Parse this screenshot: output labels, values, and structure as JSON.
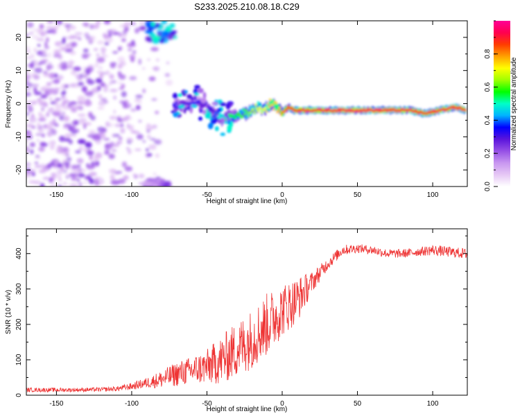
{
  "title": "S233.2025.210.08.18.C29",
  "chart_data": [
    {
      "type": "heatmap",
      "xlabel": "Height of straight line (km)",
      "ylabel": "Frequency (Hz)",
      "xlim": [
        -170,
        123
      ],
      "ylim": [
        -25,
        25
      ],
      "xticks": [
        -150,
        -100,
        -50,
        0,
        50,
        100
      ],
      "yticks": [
        -20,
        -10,
        0,
        10,
        20
      ],
      "colorbar": {
        "label": "Normalized spectral amplitude",
        "range": [
          0,
          1
        ],
        "ticks": [
          0.0,
          0.2,
          0.4,
          0.6,
          0.8
        ],
        "colors": [
          "#ffffff",
          "#e6c8f5",
          "#c896f0",
          "#9650e6",
          "#5a14dc",
          "#0000ff",
          "#00b4ff",
          "#00ffc8",
          "#00ff00",
          "#a0ff00",
          "#ffff00",
          "#ffa000",
          "#ff3c00",
          "#ff0050",
          "#ff0096"
        ]
      },
      "signal_track": {
        "x": [
          -72,
          -65,
          -58,
          -52,
          -48,
          -44,
          -40,
          -36,
          -32,
          -28,
          -24,
          -20,
          -16,
          -12,
          -8,
          -4,
          0,
          4,
          8,
          15,
          25,
          40,
          55,
          65,
          75,
          85,
          95,
          105,
          115,
          122
        ],
        "y": [
          0,
          -1,
          1,
          0,
          -2,
          -3,
          -5,
          -4,
          -4,
          -3,
          -3,
          -2,
          -1,
          -2,
          0,
          -1,
          -3,
          -1,
          -2,
          -2,
          -2,
          -2,
          -2,
          -2,
          -2,
          -2,
          -3,
          -2,
          -1,
          -2
        ],
        "amplitude": [
          0.35,
          0.3,
          0.35,
          0.3,
          0.35,
          0.4,
          0.5,
          0.55,
          0.55,
          0.6,
          0.6,
          0.65,
          0.7,
          0.7,
          0.75,
          0.75,
          0.8,
          0.85,
          0.85,
          0.9,
          0.9,
          0.92,
          0.92,
          0.92,
          0.9,
          0.9,
          0.88,
          0.9,
          0.9,
          0.88
        ]
      },
      "noise_region": {
        "x_range": [
          -170,
          -72
        ],
        "amplitude_range": [
          0.05,
          0.25
        ]
      },
      "edge_blobs": [
        {
          "x_range": [
            -90,
            -72
          ],
          "y_range": [
            19,
            25
          ],
          "amplitude": 0.4
        },
        {
          "x_range": [
            -90,
            -75
          ],
          "y_range": [
            -25,
            -23
          ],
          "amplitude": 0.2
        }
      ]
    },
    {
      "type": "line",
      "xlabel": "Height of straight line (km)",
      "ylabel": "SNR (10 * v/v)",
      "xlim": [
        -170,
        123
      ],
      "ylim": [
        0,
        470
      ],
      "xticks": [
        -150,
        -100,
        -50,
        0,
        50,
        100
      ],
      "yticks": [
        0,
        100,
        200,
        300,
        400
      ],
      "color": "#ee3333",
      "series_envelope": {
        "x": [
          -170,
          -140,
          -120,
          -110,
          -100,
          -90,
          -80,
          -70,
          -60,
          -50,
          -40,
          -30,
          -20,
          -10,
          0,
          10,
          20,
          30,
          40,
          50,
          60,
          70,
          80,
          90,
          100,
          110,
          122
        ],
        "mean": [
          15,
          15,
          16,
          18,
          25,
          35,
          45,
          60,
          70,
          80,
          100,
          130,
          160,
          200,
          240,
          270,
          320,
          370,
          410,
          415,
          410,
          400,
          400,
          405,
          410,
          405,
          400
        ],
        "spread": [
          12,
          12,
          12,
          14,
          20,
          30,
          50,
          70,
          80,
          100,
          140,
          160,
          170,
          180,
          150,
          130,
          60,
          35,
          30,
          25,
          25,
          25,
          25,
          25,
          30,
          30,
          30
        ]
      }
    }
  ]
}
